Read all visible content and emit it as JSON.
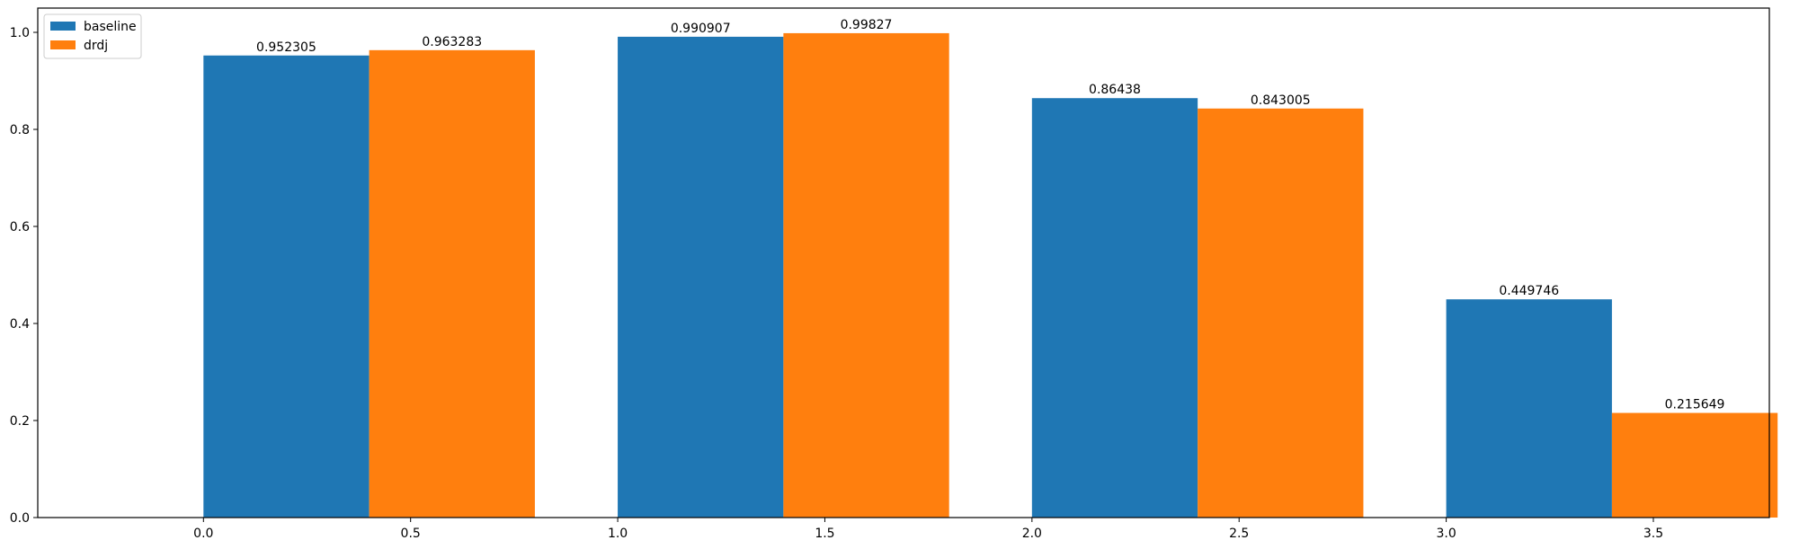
{
  "chart_data": {
    "type": "bar",
    "title": "",
    "xlabel": "",
    "ylabel": "",
    "xlim": [
      -0.4,
      3.78
    ],
    "ylim": [
      0,
      1.05
    ],
    "x_ticks": [
      "0.0",
      "0.5",
      "1.0",
      "1.5",
      "2.0",
      "2.5",
      "3.0",
      "3.5"
    ],
    "x_tick_values": [
      0.0,
      0.5,
      1.0,
      1.5,
      2.0,
      2.5,
      3.0,
      3.5
    ],
    "y_ticks": [
      "0.0",
      "0.2",
      "0.4",
      "0.6",
      "0.8",
      "1.0"
    ],
    "y_tick_values": [
      0.0,
      0.2,
      0.4,
      0.6,
      0.8,
      1.0
    ],
    "bar_width": 0.4,
    "grid": false,
    "legend_position": "top-left",
    "series": [
      {
        "name": "baseline",
        "color": "#1f77b4",
        "x": [
          0.2,
          1.2,
          2.2,
          3.2
        ],
        "values": [
          0.952305,
          0.990907,
          0.86438,
          0.449746
        ],
        "labels": [
          "0.952305",
          "0.990907",
          "0.86438",
          "0.449746"
        ]
      },
      {
        "name": "drdj",
        "color": "#ff7f0e",
        "x": [
          0.6,
          1.6,
          2.6,
          3.6
        ],
        "values": [
          0.963283,
          0.99827,
          0.843005,
          0.215649
        ],
        "labels": [
          "0.963283",
          "0.99827",
          "0.843005",
          "0.215649"
        ]
      }
    ]
  }
}
